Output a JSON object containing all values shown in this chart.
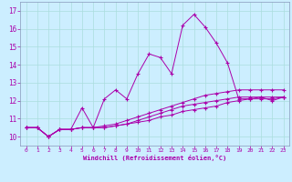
{
  "title": "",
  "xlabel": "Windchill (Refroidissement éolien,°C)",
  "background_color": "#cceeff",
  "line_color": "#aa00aa",
  "grid_color": "#aadddd",
  "xlim": [
    -0.5,
    23.5
  ],
  "ylim": [
    9.5,
    17.5
  ],
  "yticks": [
    10,
    11,
    12,
    13,
    14,
    15,
    16,
    17
  ],
  "xticks": [
    0,
    1,
    2,
    3,
    4,
    5,
    6,
    7,
    8,
    9,
    10,
    11,
    12,
    13,
    14,
    15,
    16,
    17,
    18,
    19,
    20,
    21,
    22,
    23
  ],
  "series": [
    [
      10.5,
      10.5,
      10.0,
      10.4,
      10.4,
      11.6,
      10.5,
      12.1,
      12.6,
      12.1,
      13.5,
      14.6,
      14.4,
      13.5,
      16.2,
      16.8,
      16.1,
      15.2,
      14.1,
      12.1,
      12.1,
      12.2,
      12.0,
      12.2
    ],
    [
      10.5,
      10.5,
      10.0,
      10.4,
      10.4,
      10.5,
      10.5,
      10.5,
      10.6,
      10.7,
      10.8,
      10.9,
      11.1,
      11.2,
      11.4,
      11.5,
      11.6,
      11.7,
      11.9,
      12.0,
      12.1,
      12.1,
      12.1,
      12.2
    ],
    [
      10.5,
      10.5,
      10.0,
      10.4,
      10.4,
      10.5,
      10.5,
      10.6,
      10.7,
      10.9,
      11.1,
      11.3,
      11.5,
      11.7,
      11.9,
      12.1,
      12.3,
      12.4,
      12.5,
      12.6,
      12.6,
      12.6,
      12.6,
      12.6
    ],
    [
      10.5,
      10.5,
      10.0,
      10.4,
      10.4,
      10.5,
      10.5,
      10.5,
      10.6,
      10.7,
      10.9,
      11.1,
      11.3,
      11.5,
      11.7,
      11.8,
      11.9,
      12.0,
      12.1,
      12.2,
      12.2,
      12.2,
      12.2,
      12.2
    ]
  ]
}
